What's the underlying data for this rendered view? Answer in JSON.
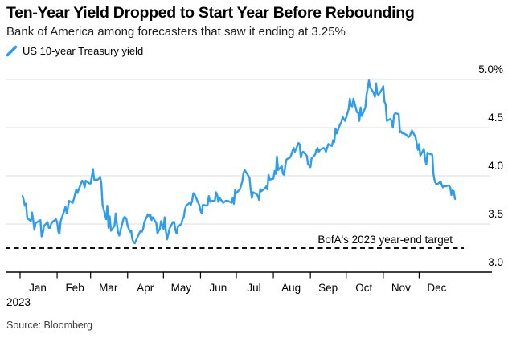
{
  "header": {
    "title": "Ten-Year Yield Dropped to Start Year Before Rebounding",
    "subtitle": "Bank of America among forecasters that saw it ending at 3.25%"
  },
  "legend": {
    "label": "US 10-year Treasury yield"
  },
  "annotation": {
    "label": "BofA's 2023 year-end target",
    "value": 3.25
  },
  "x_axis": {
    "months": [
      "Jan",
      "Feb",
      "Mar",
      "Apr",
      "May",
      "Jun",
      "Jul",
      "Aug",
      "Sep",
      "Oct",
      "Nov",
      "Dec"
    ],
    "year_label": "2023"
  },
  "y_axis": {
    "ticks": [
      {
        "value": 5.0,
        "label": "5.0%"
      },
      {
        "value": 4.5,
        "label": "4.5"
      },
      {
        "value": 4.0,
        "label": "4.0"
      },
      {
        "value": 3.5,
        "label": "3.5"
      },
      {
        "value": 3.0,
        "label": "3.0"
      }
    ]
  },
  "source": "Source: Bloomberg",
  "colors": {
    "line": "#2e9cef",
    "grid": "#dcdcdc",
    "axis": "#000000",
    "dashed": "#111111",
    "text": "#000000",
    "subtitle_text": "#1f1f1f",
    "source_text": "#3c3c3c"
  },
  "chart_data": {
    "type": "line",
    "title": "Ten-Year Yield Dropped to Start Year Before Rebounding",
    "xlabel": "2023 (Jan–Dec)",
    "ylabel": "US 10-year Treasury yield (%)",
    "x_unit": "day_of_year_2023",
    "xlim": [
      0,
      366
    ],
    "ylim": [
      3.0,
      5.0
    ],
    "grid": "horizontal",
    "legend_position": "top-left",
    "month_start_days": [
      0,
      31,
      59,
      90,
      120,
      151,
      181,
      212,
      243,
      273,
      304,
      334
    ],
    "target_line": {
      "value": 3.25,
      "label": "BofA's 2023 year-end target",
      "style": "dashed"
    },
    "series": [
      {
        "name": "US 10-year Treasury yield",
        "points": [
          [
            2,
            3.79
          ],
          [
            3,
            3.75
          ],
          [
            4,
            3.69
          ],
          [
            5,
            3.71
          ],
          [
            6,
            3.56
          ],
          [
            9,
            3.53
          ],
          [
            10,
            3.62
          ],
          [
            11,
            3.54
          ],
          [
            12,
            3.44
          ],
          [
            13,
            3.51
          ],
          [
            17,
            3.54
          ],
          [
            18,
            3.37
          ],
          [
            19,
            3.4
          ],
          [
            20,
            3.48
          ],
          [
            23,
            3.52
          ],
          [
            24,
            3.46
          ],
          [
            25,
            3.46
          ],
          [
            26,
            3.5
          ],
          [
            27,
            3.52
          ],
          [
            30,
            3.55
          ],
          [
            31,
            3.52
          ],
          [
            32,
            3.42
          ],
          [
            33,
            3.4
          ],
          [
            34,
            3.53
          ],
          [
            37,
            3.64
          ],
          [
            38,
            3.68
          ],
          [
            39,
            3.61
          ],
          [
            40,
            3.67
          ],
          [
            41,
            3.74
          ],
          [
            44,
            3.72
          ],
          [
            45,
            3.76
          ],
          [
            46,
            3.81
          ],
          [
            47,
            3.86
          ],
          [
            48,
            3.82
          ],
          [
            51,
            3.92
          ],
          [
            52,
            3.95
          ],
          [
            53,
            3.93
          ],
          [
            54,
            3.88
          ],
          [
            55,
            3.95
          ],
          [
            58,
            3.92
          ],
          [
            59,
            3.92
          ],
          [
            60,
            3.99
          ],
          [
            61,
            4.07
          ],
          [
            62,
            3.96
          ],
          [
            65,
            3.96
          ],
          [
            66,
            3.97
          ],
          [
            67,
            3.99
          ],
          [
            68,
            3.92
          ],
          [
            69,
            3.7
          ],
          [
            72,
            3.55
          ],
          [
            73,
            3.69
          ],
          [
            74,
            3.46
          ],
          [
            75,
            3.58
          ],
          [
            76,
            3.43
          ],
          [
            79,
            3.48
          ],
          [
            80,
            3.61
          ],
          [
            81,
            3.5
          ],
          [
            82,
            3.41
          ],
          [
            83,
            3.38
          ],
          [
            86,
            3.53
          ],
          [
            87,
            3.57
          ],
          [
            88,
            3.57
          ],
          [
            89,
            3.55
          ],
          [
            90,
            3.48
          ],
          [
            92,
            3.42
          ],
          [
            93,
            3.43
          ],
          [
            94,
            3.34
          ],
          [
            95,
            3.31
          ],
          [
            96,
            3.3
          ],
          [
            100,
            3.41
          ],
          [
            101,
            3.43
          ],
          [
            102,
            3.42
          ],
          [
            103,
            3.45
          ],
          [
            104,
            3.52
          ],
          [
            107,
            3.6
          ],
          [
            108,
            3.58
          ],
          [
            109,
            3.6
          ],
          [
            110,
            3.54
          ],
          [
            111,
            3.57
          ],
          [
            114,
            3.51
          ],
          [
            115,
            3.4
          ],
          [
            116,
            3.43
          ],
          [
            117,
            3.45
          ],
          [
            118,
            3.53
          ],
          [
            120,
            3.45
          ],
          [
            121,
            3.57
          ],
          [
            122,
            3.43
          ],
          [
            123,
            3.34
          ],
          [
            124,
            3.39
          ],
          [
            125,
            3.45
          ],
          [
            128,
            3.52
          ],
          [
            129,
            3.52
          ],
          [
            130,
            3.44
          ],
          [
            131,
            3.4
          ],
          [
            132,
            3.47
          ],
          [
            135,
            3.5
          ],
          [
            136,
            3.55
          ],
          [
            137,
            3.57
          ],
          [
            138,
            3.65
          ],
          [
            139,
            3.69
          ],
          [
            142,
            3.72
          ],
          [
            143,
            3.7
          ],
          [
            144,
            3.74
          ],
          [
            145,
            3.82
          ],
          [
            146,
            3.81
          ],
          [
            149,
            3.72
          ],
          [
            150,
            3.7
          ],
          [
            151,
            3.64
          ],
          [
            152,
            3.61
          ],
          [
            153,
            3.7
          ],
          [
            156,
            3.69
          ],
          [
            157,
            3.7
          ],
          [
            158,
            3.79
          ],
          [
            159,
            3.73
          ],
          [
            160,
            3.74
          ],
          [
            163,
            3.74
          ],
          [
            164,
            3.83
          ],
          [
            165,
            3.8
          ],
          [
            166,
            3.73
          ],
          [
            167,
            3.77
          ],
          [
            170,
            3.72
          ],
          [
            171,
            3.73
          ],
          [
            172,
            3.74
          ],
          [
            174,
            3.74
          ],
          [
            177,
            3.72
          ],
          [
            178,
            3.77
          ],
          [
            179,
            3.71
          ],
          [
            180,
            3.85
          ],
          [
            181,
            3.82
          ],
          [
            184,
            3.86
          ],
          [
            186,
            3.94
          ],
          [
            187,
            4.03
          ],
          [
            188,
            4.06
          ],
          [
            191,
            4.0
          ],
          [
            192,
            3.98
          ],
          [
            193,
            3.86
          ],
          [
            194,
            3.77
          ],
          [
            195,
            3.83
          ],
          [
            198,
            3.81
          ],
          [
            199,
            3.79
          ],
          [
            200,
            3.75
          ],
          [
            201,
            3.86
          ],
          [
            202,
            3.84
          ],
          [
            205,
            3.87
          ],
          [
            206,
            3.89
          ],
          [
            207,
            3.86
          ],
          [
            208,
            4.01
          ],
          [
            209,
            3.96
          ],
          [
            212,
            3.97
          ],
          [
            213,
            4.05
          ],
          [
            214,
            4.02
          ],
          [
            215,
            4.2
          ],
          [
            216,
            4.06
          ],
          [
            219,
            4.1
          ],
          [
            220,
            4.02
          ],
          [
            221,
            4.01
          ],
          [
            222,
            4.11
          ],
          [
            223,
            4.17
          ],
          [
            226,
            4.19
          ],
          [
            227,
            4.22
          ],
          [
            228,
            4.26
          ],
          [
            229,
            4.29
          ],
          [
            230,
            4.25
          ],
          [
            233,
            4.34
          ],
          [
            234,
            4.33
          ],
          [
            235,
            4.19
          ],
          [
            236,
            4.24
          ],
          [
            237,
            4.25
          ],
          [
            240,
            4.21
          ],
          [
            241,
            4.12
          ],
          [
            242,
            4.11
          ],
          [
            243,
            4.09
          ],
          [
            244,
            4.18
          ],
          [
            247,
            4.22
          ],
          [
            248,
            4.27
          ],
          [
            249,
            4.29
          ],
          [
            250,
            4.25
          ],
          [
            251,
            4.27
          ],
          [
            254,
            4.29
          ],
          [
            255,
            4.28
          ],
          [
            256,
            4.25
          ],
          [
            257,
            4.29
          ],
          [
            258,
            4.33
          ],
          [
            261,
            4.31
          ],
          [
            262,
            4.37
          ],
          [
            263,
            4.35
          ],
          [
            264,
            4.49
          ],
          [
            265,
            4.44
          ],
          [
            268,
            4.54
          ],
          [
            269,
            4.56
          ],
          [
            270,
            4.61
          ],
          [
            271,
            4.59
          ],
          [
            272,
            4.57
          ],
          [
            275,
            4.69
          ],
          [
            276,
            4.8
          ],
          [
            277,
            4.73
          ],
          [
            278,
            4.72
          ],
          [
            279,
            4.8
          ],
          [
            282,
            4.66
          ],
          [
            283,
            4.66
          ],
          [
            284,
            4.57
          ],
          [
            285,
            4.71
          ],
          [
            286,
            4.62
          ],
          [
            289,
            4.71
          ],
          [
            290,
            4.84
          ],
          [
            291,
            4.91
          ],
          [
            292,
            4.99
          ],
          [
            293,
            4.92
          ],
          [
            296,
            4.86
          ],
          [
            297,
            4.82
          ],
          [
            298,
            4.96
          ],
          [
            299,
            4.85
          ],
          [
            300,
            4.84
          ],
          [
            303,
            4.9
          ],
          [
            304,
            4.93
          ],
          [
            305,
            4.77
          ],
          [
            306,
            4.74
          ],
          [
            307,
            4.57
          ],
          [
            310,
            4.59
          ],
          [
            311,
            4.57
          ],
          [
            312,
            4.5
          ],
          [
            313,
            4.63
          ],
          [
            314,
            4.65
          ],
          [
            317,
            4.64
          ],
          [
            318,
            4.45
          ],
          [
            319,
            4.46
          ],
          [
            320,
            4.44
          ],
          [
            321,
            4.44
          ],
          [
            324,
            4.42
          ],
          [
            325,
            4.4
          ],
          [
            326,
            4.41
          ],
          [
            328,
            4.47
          ],
          [
            331,
            4.4
          ],
          [
            332,
            4.34
          ],
          [
            333,
            4.27
          ],
          [
            334,
            4.33
          ],
          [
            335,
            4.21
          ],
          [
            338,
            4.28
          ],
          [
            339,
            4.17
          ],
          [
            340,
            4.12
          ],
          [
            341,
            4.24
          ],
          [
            342,
            4.23
          ],
          [
            345,
            4.22
          ],
          [
            346,
            4.02
          ],
          [
            347,
            3.95
          ],
          [
            348,
            3.92
          ],
          [
            349,
            3.91
          ],
          [
            352,
            3.94
          ],
          [
            353,
            3.9
          ],
          [
            354,
            3.88
          ],
          [
            355,
            3.9
          ],
          [
            356,
            3.89
          ],
          [
            359,
            3.9
          ],
          [
            360,
            3.88
          ],
          [
            361,
            3.8
          ],
          [
            362,
            3.85
          ],
          [
            363,
            3.84
          ],
          [
            364,
            3.76
          ]
        ]
      }
    ]
  }
}
